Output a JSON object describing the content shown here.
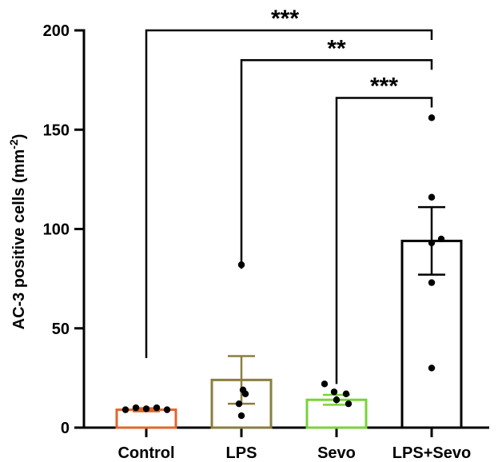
{
  "chart_data": {
    "type": "bar",
    "categories": [
      "Control",
      "LPS",
      "Sevo",
      "LPS+Sevo"
    ],
    "values": [
      9,
      24,
      14,
      94
    ],
    "errors": [
      0.8,
      12,
      2.5,
      17
    ],
    "points": [
      [
        9,
        10,
        9.5,
        10,
        9
      ],
      [
        82,
        19,
        12,
        6,
        17
      ],
      [
        22,
        18,
        17,
        14,
        12
      ],
      [
        156,
        116,
        95,
        93,
        73,
        30
      ]
    ],
    "bar_colors": [
      "#e2652a",
      "#8a7e3f",
      "#79d23a",
      "#000000"
    ],
    "ylabel": "AC-3 positive cells (mm",
    "ylabel_sup": "-2",
    "ylabel_close": ")",
    "ylim": [
      0,
      200
    ],
    "yticks": [
      0,
      50,
      100,
      150,
      200
    ],
    "significance": [
      {
        "from": 0,
        "to": 3,
        "label": "***",
        "level": 200
      },
      {
        "from": 1,
        "to": 3,
        "label": "**",
        "level": 185
      },
      {
        "from": 2,
        "to": 3,
        "label": "***",
        "level": 166
      }
    ]
  }
}
